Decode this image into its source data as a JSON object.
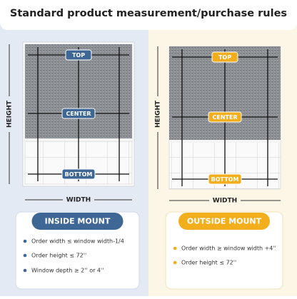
{
  "header": {
    "title": "Standard product measurement/purchase rules"
  },
  "panels": [
    {
      "labels": {
        "top": "TOP",
        "center": "CENTER",
        "bottom": "BOTTOM",
        "height": "HEIGHT",
        "width": "WIDTH"
      },
      "mount": "INSIDE MOUNT",
      "rules": [
        "Order width ≤ window width-1/4",
        "Order height ≤ 72''",
        "Window depth ≥ 2'' or 4''"
      ]
    },
    {
      "labels": {
        "top": "TOP",
        "center": "CENTER",
        "bottom": "BOTTOM",
        "height": "HEIGHT",
        "width": "WIDTH"
      },
      "mount": "OUTSIDE MOUNT",
      "rules": [
        "Order width ≥ window width +4''",
        "Order height ≤ 72''"
      ]
    }
  ]
}
